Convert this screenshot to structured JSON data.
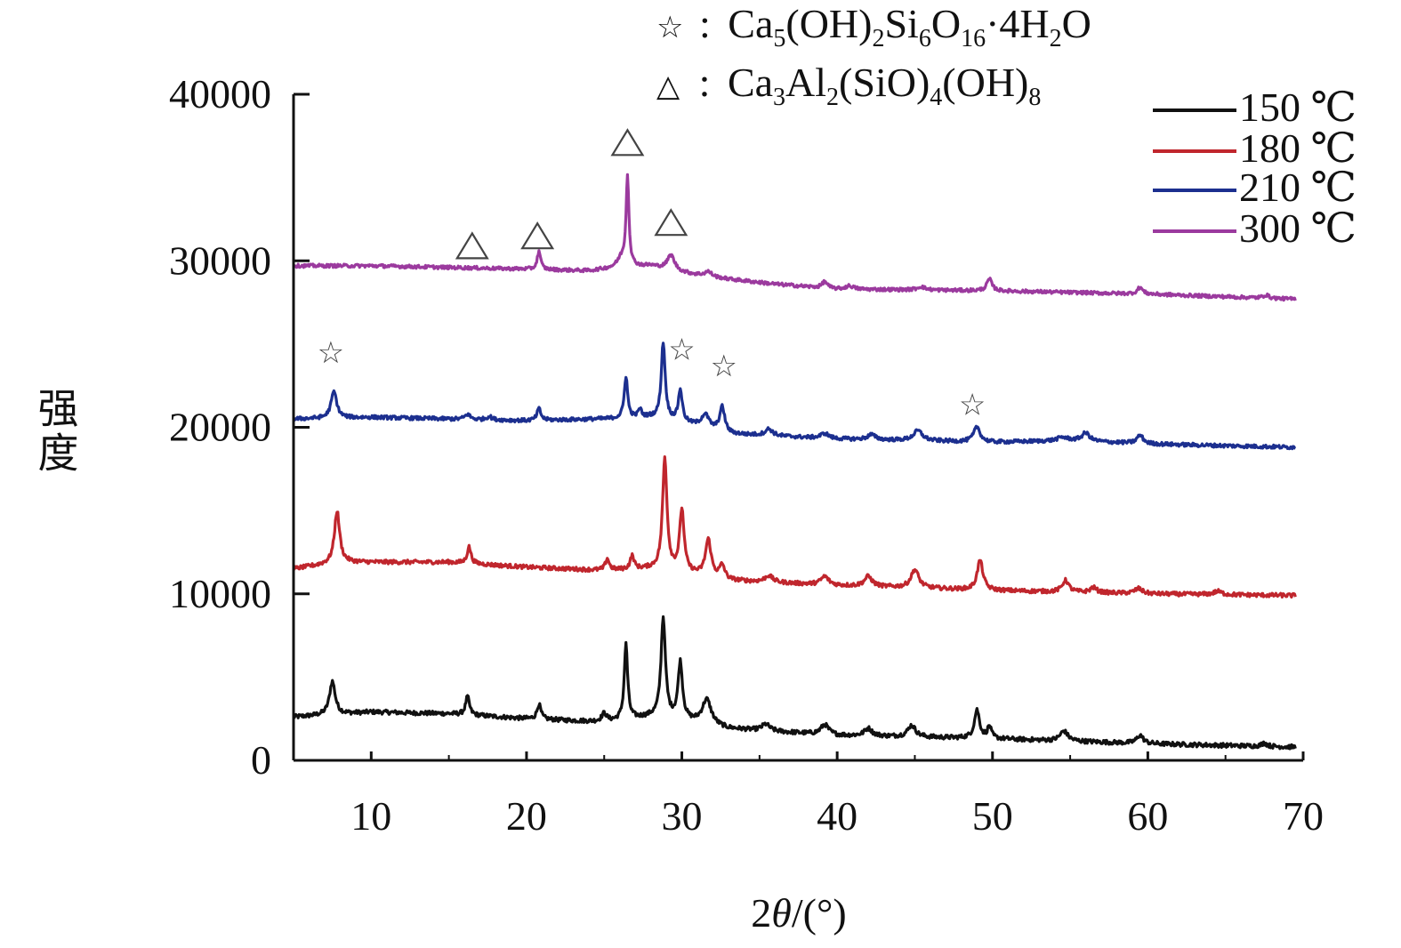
{
  "chart_data": {
    "type": "line",
    "xlabel_prefix": "2",
    "xlabel_theta": "θ",
    "xlabel_suffix": "/(°)",
    "ylabel": "强度",
    "xlim": [
      5,
      70
    ],
    "ylim": [
      0,
      40000
    ],
    "xticks": [
      10,
      20,
      30,
      40,
      50,
      60,
      70
    ],
    "yticks": [
      0,
      10000,
      20000,
      30000,
      40000
    ],
    "legend_position": "top-right",
    "series": [
      {
        "name": "150 ℃",
        "color": "#111111",
        "baseline": [
          [
            5,
            2600
          ],
          [
            10,
            2900
          ],
          [
            15,
            2800
          ],
          [
            20,
            2500
          ],
          [
            25,
            2300
          ],
          [
            28,
            2600
          ],
          [
            30,
            2400
          ],
          [
            33,
            1900
          ],
          [
            40,
            1500
          ],
          [
            50,
            1300
          ],
          [
            60,
            1000
          ],
          [
            69.5,
            800
          ]
        ],
        "peaks": [
          [
            7.5,
            2000,
            0.22
          ],
          [
            16.2,
            1100,
            0.15
          ],
          [
            20.8,
            900,
            0.15
          ],
          [
            25,
            500,
            0.2
          ],
          [
            26.4,
            4500,
            0.13
          ],
          [
            28.8,
            6000,
            0.17
          ],
          [
            29.9,
            3400,
            0.17
          ],
          [
            31.6,
            1500,
            0.35
          ],
          [
            35.4,
            400,
            0.3
          ],
          [
            39.2,
            600,
            0.3
          ],
          [
            42,
            450,
            0.3
          ],
          [
            44.8,
            700,
            0.3
          ],
          [
            49,
            1700,
            0.2
          ],
          [
            49.8,
            700,
            0.15
          ],
          [
            54.6,
            600,
            0.3
          ],
          [
            59.5,
            500,
            0.25
          ],
          [
            67.5,
            200,
            0.2
          ]
        ],
        "noise": 130
      },
      {
        "name": "180 ℃",
        "color": "#c0262d",
        "baseline": [
          [
            5,
            11500
          ],
          [
            8,
            11900
          ],
          [
            15,
            11900
          ],
          [
            20,
            11600
          ],
          [
            25,
            11400
          ],
          [
            28,
            11500
          ],
          [
            30,
            11300
          ],
          [
            33,
            10800
          ],
          [
            40,
            10500
          ],
          [
            50,
            10200
          ],
          [
            60,
            10000
          ],
          [
            69.5,
            9900
          ]
        ],
        "peaks": [
          [
            7.8,
            3100,
            0.2
          ],
          [
            16.3,
            1000,
            0.15
          ],
          [
            25.2,
            700,
            0.15
          ],
          [
            26.8,
            800,
            0.15
          ],
          [
            28.9,
            6700,
            0.17
          ],
          [
            30,
            3700,
            0.17
          ],
          [
            31.7,
            2200,
            0.22
          ],
          [
            32.6,
            800,
            0.2
          ],
          [
            35.6,
            400,
            0.3
          ],
          [
            39.2,
            500,
            0.3
          ],
          [
            42,
            600,
            0.3
          ],
          [
            45,
            1100,
            0.3
          ],
          [
            49.2,
            1800,
            0.22
          ],
          [
            54.7,
            700,
            0.25
          ],
          [
            56.5,
            300,
            0.25
          ],
          [
            59.4,
            300,
            0.3
          ],
          [
            64.5,
            200,
            0.3
          ]
        ],
        "noise": 120
      },
      {
        "name": "210 ℃",
        "color": "#1c2f8f",
        "baseline": [
          [
            5,
            20500
          ],
          [
            10,
            20600
          ],
          [
            15,
            20500
          ],
          [
            20,
            20400
          ],
          [
            25,
            20500
          ],
          [
            28,
            20600
          ],
          [
            30,
            20300
          ],
          [
            33,
            19600
          ],
          [
            40,
            19300
          ],
          [
            45,
            19200
          ],
          [
            50,
            19100
          ],
          [
            55,
            19200
          ],
          [
            60,
            19000
          ],
          [
            69.5,
            18800
          ]
        ],
        "peaks": [
          [
            7.6,
            1600,
            0.22
          ],
          [
            16.2,
            300,
            0.2
          ],
          [
            17.6,
            200,
            0.2
          ],
          [
            20.8,
            700,
            0.15
          ],
          [
            26.4,
            2500,
            0.13
          ],
          [
            27.3,
            500,
            0.12
          ],
          [
            28.8,
            4600,
            0.15
          ],
          [
            29.9,
            1900,
            0.15
          ],
          [
            31.5,
            800,
            0.3
          ],
          [
            32.6,
            1500,
            0.2
          ],
          [
            35.6,
            400,
            0.3
          ],
          [
            39.2,
            300,
            0.3
          ],
          [
            42.2,
            300,
            0.3
          ],
          [
            45.2,
            600,
            0.35
          ],
          [
            49,
            900,
            0.25
          ],
          [
            54.5,
            200,
            0.4
          ],
          [
            56,
            500,
            0.3
          ],
          [
            59.5,
            500,
            0.25
          ]
        ],
        "noise": 110
      },
      {
        "name": "300 ℃",
        "color": "#9b3a9e",
        "baseline": [
          [
            5,
            29700
          ],
          [
            10,
            29700
          ],
          [
            15,
            29600
          ],
          [
            20,
            29500
          ],
          [
            24,
            29400
          ],
          [
            26,
            29600
          ],
          [
            28,
            29700
          ],
          [
            30,
            29300
          ],
          [
            32,
            29000
          ],
          [
            36,
            28600
          ],
          [
            40,
            28300
          ],
          [
            50,
            28200
          ],
          [
            60,
            28000
          ],
          [
            69.5,
            27700
          ]
        ],
        "peaks": [
          [
            20.8,
            1100,
            0.13
          ],
          [
            26.1,
            500,
            0.3
          ],
          [
            26.5,
            5400,
            0.11
          ],
          [
            29.3,
            900,
            0.28
          ],
          [
            31.7,
            300,
            0.3
          ],
          [
            39.2,
            400,
            0.2
          ],
          [
            40.8,
            200,
            0.3
          ],
          [
            45.4,
            200,
            0.3
          ],
          [
            49.8,
            700,
            0.2
          ],
          [
            59.5,
            400,
            0.2
          ],
          [
            67.6,
            200,
            0.2
          ]
        ],
        "noise": 100
      }
    ],
    "annotations": {
      "star_label": {
        "symbol": "☆",
        "sep": ":",
        "parts": [
          "Ca",
          "5",
          "(OH)",
          "2",
          "Si",
          "6",
          "O",
          "16",
          "·4H",
          "2",
          "O"
        ]
      },
      "triangle_label": {
        "symbol": "△",
        "sep": ":",
        "parts": [
          "Ca",
          "3",
          "Al",
          "2",
          "(SiO)",
          "4",
          "(OH)",
          "8"
        ]
      },
      "star_markers": [
        [
          7.4,
          24500
        ],
        [
          30.0,
          24700
        ],
        [
          32.7,
          23700
        ],
        [
          48.7,
          21400
        ]
      ],
      "triangle_markers": [
        [
          16.5,
          30900
        ],
        [
          20.7,
          31500
        ],
        [
          26.5,
          37100
        ],
        [
          29.3,
          32300
        ]
      ]
    }
  }
}
